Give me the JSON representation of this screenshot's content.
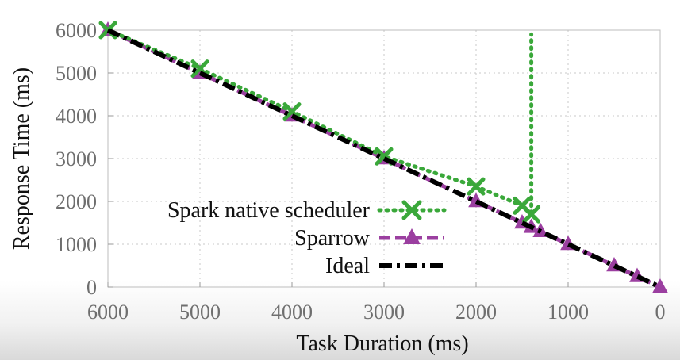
{
  "chart_data": {
    "type": "line",
    "title": "",
    "xlabel": "Task Duration (ms)",
    "ylabel": "Response Time (ms)",
    "xlim": [
      6000,
      0
    ],
    "ylim": [
      0,
      6000
    ],
    "x_reversed": true,
    "x_ticks": [
      6000,
      5000,
      4000,
      3000,
      2000,
      1000,
      0
    ],
    "y_ticks": [
      0,
      1000,
      2000,
      3000,
      4000,
      5000,
      6000
    ],
    "grid": true,
    "legend_position": "bottom-left-center",
    "series": [
      {
        "name": "Spark native scheduler",
        "color": "#3aa83a",
        "line_style": "dotted",
        "marker": "x",
        "x": [
          6000,
          5000,
          4000,
          3000,
          2000,
          1500,
          1400,
          1400
        ],
        "y": [
          6000,
          5100,
          4100,
          3050,
          2350,
          1900,
          1700,
          5900
        ]
      },
      {
        "name": "Sparrow",
        "color": "#9b3fa0",
        "line_style": "dashed",
        "marker": "triangle",
        "x": [
          6000,
          5000,
          4000,
          3000,
          2000,
          1500,
          1400,
          1300,
          1000,
          500,
          250,
          0
        ],
        "y": [
          6000,
          5000,
          4000,
          3000,
          2000,
          1500,
          1400,
          1300,
          1000,
          500,
          250,
          0
        ]
      },
      {
        "name": "Ideal",
        "color": "#000000",
        "line_style": "dash-dot",
        "marker": "none",
        "x": [
          6000,
          0
        ],
        "y": [
          6000,
          0
        ]
      }
    ]
  }
}
